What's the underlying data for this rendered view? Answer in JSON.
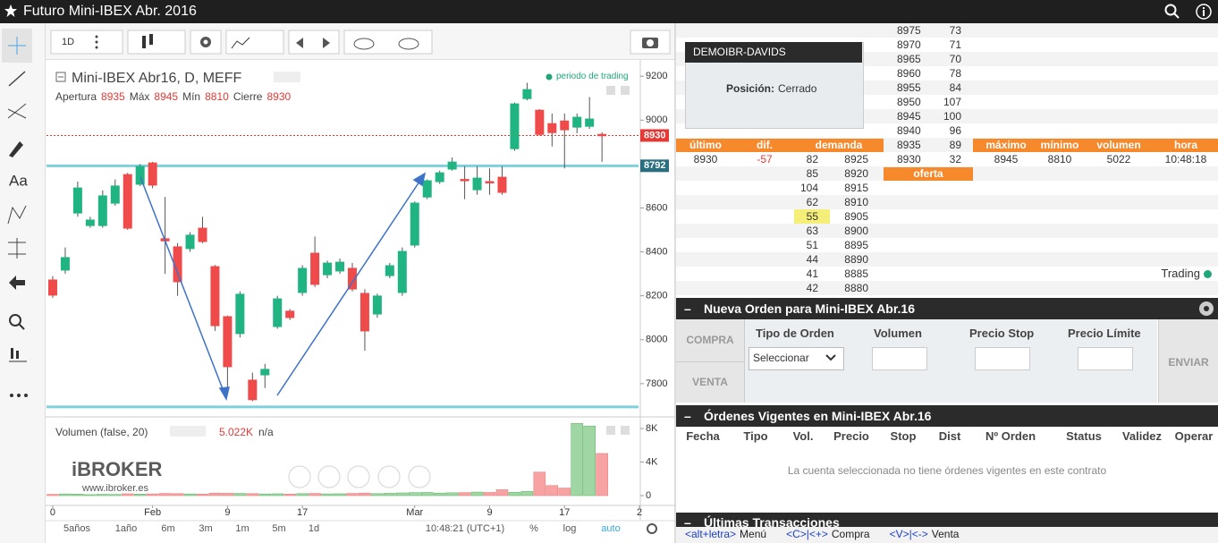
{
  "title_bar": {
    "title": "Futuro Mini-IBEX Abr. 2016"
  },
  "toolbar": {
    "interval": "1D"
  },
  "chart_data": [
    {
      "type": "candlestick",
      "title": "Mini-IBEX Abr16, D, MEFF",
      "ohlc_legend": {
        "open_label": "Apertura",
        "open": 8935,
        "high_label": "Máx",
        "high": 8945,
        "low_label": "Mín",
        "low": 8810,
        "close_label": "Cierre",
        "close": 8930
      },
      "status": "periodo de trading",
      "up_color": "#20b482",
      "down_color": "#ef4b4b",
      "ohlc": [
        [
          8272,
          8290,
          8190,
          8203
        ],
        [
          8317,
          8420,
          8300,
          8374
        ],
        [
          8577,
          8720,
          8560,
          8691
        ],
        [
          8520,
          8560,
          8510,
          8545
        ],
        [
          8520,
          8680,
          8510,
          8655
        ],
        [
          8622,
          8730,
          8610,
          8700
        ],
        [
          8752,
          8760,
          8500,
          8508
        ],
        [
          8708,
          8800,
          8700,
          8789
        ],
        [
          8805,
          8810,
          8690,
          8704
        ],
        [
          8460,
          8650,
          8300,
          8450
        ],
        [
          8423,
          8440,
          8200,
          8264
        ],
        [
          8415,
          8490,
          8400,
          8476
        ],
        [
          8508,
          8560,
          8440,
          8447
        ],
        [
          8333,
          8340,
          8040,
          8064
        ],
        [
          8105,
          8110,
          7780,
          7877
        ],
        [
          8028,
          8220,
          8010,
          8207
        ],
        [
          7816,
          7850,
          7720,
          7727
        ],
        [
          7840,
          7890,
          7780,
          7865
        ],
        [
          8060,
          8200,
          8050,
          8186
        ],
        [
          8130,
          8140,
          8090,
          8101
        ],
        [
          8215,
          8340,
          8200,
          8325
        ],
        [
          8394,
          8470,
          8240,
          8252
        ],
        [
          8296,
          8360,
          8280,
          8349
        ],
        [
          8313,
          8370,
          8300,
          8353
        ],
        [
          8325,
          8350,
          8220,
          8231
        ],
        [
          8211,
          8230,
          7950,
          8040
        ],
        [
          8117,
          8210,
          8100,
          8199
        ],
        [
          8292,
          8350,
          8280,
          8337
        ],
        [
          8215,
          8420,
          8200,
          8402
        ],
        [
          8431,
          8630,
          8420,
          8622
        ],
        [
          8650,
          8730,
          8640,
          8724
        ],
        [
          8720,
          8770,
          8710,
          8760
        ],
        [
          8777,
          8830,
          8770,
          8809
        ],
        [
          8730,
          8790,
          8640,
          8724
        ],
        [
          8683,
          8790,
          8660,
          8736
        ],
        [
          8720,
          8780,
          8660,
          8716
        ],
        [
          8740,
          8790,
          8660,
          8671
        ],
        [
          8870,
          9080,
          8860,
          9074
        ],
        [
          9098,
          9170,
          9090,
          9139
        ],
        [
          9045,
          9050,
          8930,
          8935
        ],
        [
          8984,
          9030,
          8880,
          8943
        ],
        [
          8996,
          9030,
          8780,
          8956
        ],
        [
          8968,
          9030,
          8940,
          9013
        ],
        [
          8972,
          9105,
          8960,
          9005
        ],
        [
          8935,
          8945,
          8810,
          8930
        ]
      ],
      "xlim": [
        -0.5,
        47.5
      ],
      "xticks": [
        0,
        {
          "value": 8,
          "label": "Feb"
        },
        {
          "value": 14,
          "label": "9"
        },
        {
          "value": 20,
          "label": "17"
        },
        {
          "value": 29,
          "label": "Mar"
        },
        {
          "value": 35,
          "label": "9"
        },
        {
          "value": 41,
          "label": "17"
        },
        {
          "value": 47,
          "label": "2"
        }
      ],
      "ylim": [
        7665,
        9270
      ],
      "yticks": [
        7800,
        8000,
        8200,
        8400,
        8600,
        8800,
        9000,
        9200
      ],
      "last_price": 8930,
      "last_price_color": "#e53935",
      "hlines": [
        8792,
        7694
      ],
      "hline_color": "#7fd0dd"
    },
    {
      "type": "bar",
      "title": "Volumen (false, 20)",
      "last_value_label": "5.022K",
      "extra": "n/a",
      "values": [
        150,
        200,
        180,
        120,
        160,
        140,
        220,
        180,
        200,
        260,
        240,
        200,
        180,
        300,
        280,
        260,
        240,
        200,
        220,
        180,
        240,
        260,
        200,
        220,
        260,
        300,
        240,
        280,
        320,
        360,
        380,
        300,
        340,
        360,
        420,
        380,
        700,
        400,
        500,
        2800,
        1200,
        900,
        8600,
        8300,
        5022
      ],
      "ylim": [
        -1170,
        8960
      ],
      "yticks": [
        0,
        {
          "value": 4000,
          "label": "4K"
        },
        {
          "value": 8000,
          "label": "8K"
        }
      ]
    }
  ],
  "watermark": {
    "brand": "iBROKER",
    "url": "www.ibroker.es"
  },
  "range_buttons": [
    "5años",
    "1año",
    "6m",
    "3m",
    "1m",
    "5m",
    "1d"
  ],
  "clock": "10:48:21 (UTC+1)",
  "scale_buttons": [
    "%",
    "log",
    "auto"
  ],
  "account": {
    "name": "DEMOIBR-DAVIDS",
    "position_label": "Posición:",
    "position": "Cerrado"
  },
  "order_book": {
    "asks": [
      [
        8975,
        73
      ],
      [
        8970,
        71
      ],
      [
        8965,
        70
      ],
      [
        8960,
        78
      ],
      [
        8955,
        84
      ],
      [
        8950,
        107
      ],
      [
        8945,
        100
      ],
      [
        8940,
        96
      ],
      [
        8935,
        89
      ],
      [
        8930,
        32
      ]
    ],
    "bids": [
      [
        82,
        8925
      ],
      [
        85,
        8920
      ],
      [
        104,
        8915
      ],
      [
        62,
        8910
      ],
      [
        55,
        8905
      ],
      [
        63,
        8900
      ],
      [
        51,
        8895
      ],
      [
        44,
        8890
      ],
      [
        41,
        8885
      ],
      [
        42,
        8880
      ]
    ],
    "highlight": 4,
    "headers": {
      "last": "último",
      "change": "dif.",
      "bid": "demanda",
      "high": "máximo",
      "low": "mínimo",
      "volume": "volumen",
      "time": "hora",
      "ask": "oferta"
    },
    "quote": {
      "last": 8930,
      "change": -57,
      "high": 8945,
      "low": 8810,
      "volume": 5022,
      "time": "10:48:18"
    },
    "status": "Trading"
  },
  "new_order": {
    "title": "Nueva Orden para Mini-IBEX Abr.16",
    "buy": "COMPRA",
    "sell": "VENTA",
    "type_label": "Tipo de Orden",
    "type_value": "Seleccionar",
    "volume_label": "Volumen",
    "stop_label": "Precio Stop",
    "limit_label": "Precio Límite",
    "send": "ENVIAR"
  },
  "open_orders": {
    "title": "Órdenes Vigentes en Mini-IBEX Abr.16",
    "columns": [
      "Fecha",
      "Tipo",
      "Vol.",
      "Precio",
      "Stop",
      "Dist",
      "Nº Orden",
      "Status",
      "Validez",
      "Operar"
    ],
    "message": "La cuenta seleccionada no tiene órdenes vigentes en este contrato"
  },
  "transactions": {
    "title": "Últimas Transacciones"
  },
  "shortcuts": [
    {
      "key": "<alt+letra>",
      "action": "Menú"
    },
    {
      "key": "<C>|<+>",
      "action": "Compra"
    },
    {
      "key": "<V>|<->",
      "action": "Venta"
    }
  ]
}
